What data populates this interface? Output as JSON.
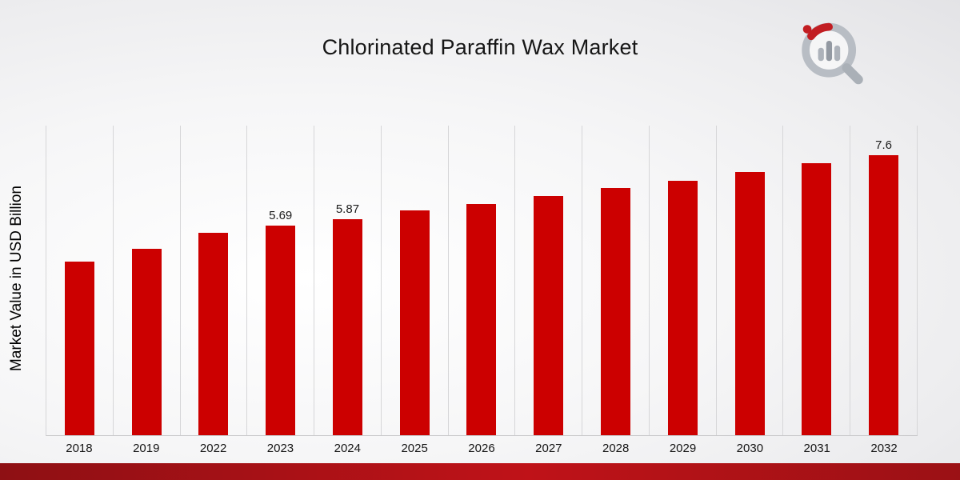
{
  "title": "Chlorinated Paraffin Wax Market",
  "chart_data": {
    "type": "bar",
    "title": "Chlorinated Paraffin Wax Market",
    "xlabel": "",
    "ylabel": "Market Value in USD Billion",
    "categories": [
      "2018",
      "2019",
      "2022",
      "2023",
      "2024",
      "2025",
      "2026",
      "2027",
      "2028",
      "2029",
      "2030",
      "2031",
      "2032"
    ],
    "values": [
      4.7,
      5.05,
      5.5,
      5.69,
      5.87,
      6.1,
      6.28,
      6.48,
      6.7,
      6.9,
      7.15,
      7.38,
      7.6
    ],
    "bar_labels": [
      null,
      null,
      null,
      "5.69",
      "5.87",
      null,
      null,
      null,
      null,
      null,
      null,
      null,
      "7.6"
    ],
    "ylim": [
      0,
      8.4
    ],
    "grid": "vertical-only",
    "legend": "none",
    "bar_color": "#CC0000"
  },
  "branding": {
    "logo": "magnifier-bar-chart-logo",
    "logo_gray": "#B4BAC2",
    "logo_red": "#C01318"
  },
  "footer": {
    "strip_color_left": "#8E1014",
    "strip_color_mid": "#BF1218",
    "strip_color_right": "#9B1115"
  }
}
